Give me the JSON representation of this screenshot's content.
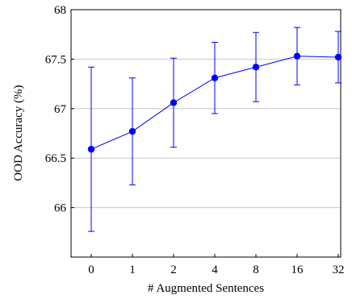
{
  "chart_data": {
    "type": "line",
    "categories": [
      "0",
      "1",
      "2",
      "4",
      "8",
      "16",
      "32"
    ],
    "series": [
      {
        "values": [
          66.59,
          66.77,
          67.06,
          67.31,
          67.42,
          67.53,
          67.52
        ],
        "error_low": [
          65.76,
          66.23,
          66.61,
          66.95,
          67.07,
          67.24,
          67.26
        ],
        "error_high": [
          67.42,
          67.31,
          67.51,
          67.67,
          67.77,
          67.82,
          67.78
        ],
        "color": "#0000ff",
        "marker": "circle"
      }
    ],
    "xlabel": "# Augmented Sentences",
    "ylabel": "OOD Accuracy (%)",
    "ylim": [
      65.5,
      68
    ],
    "yticks": [
      "66",
      "66.5",
      "67",
      "67.5",
      "68"
    ],
    "ytick_values": [
      66,
      66.5,
      67,
      67.5,
      68
    ],
    "grid": "horizontal",
    "legend": false
  }
}
